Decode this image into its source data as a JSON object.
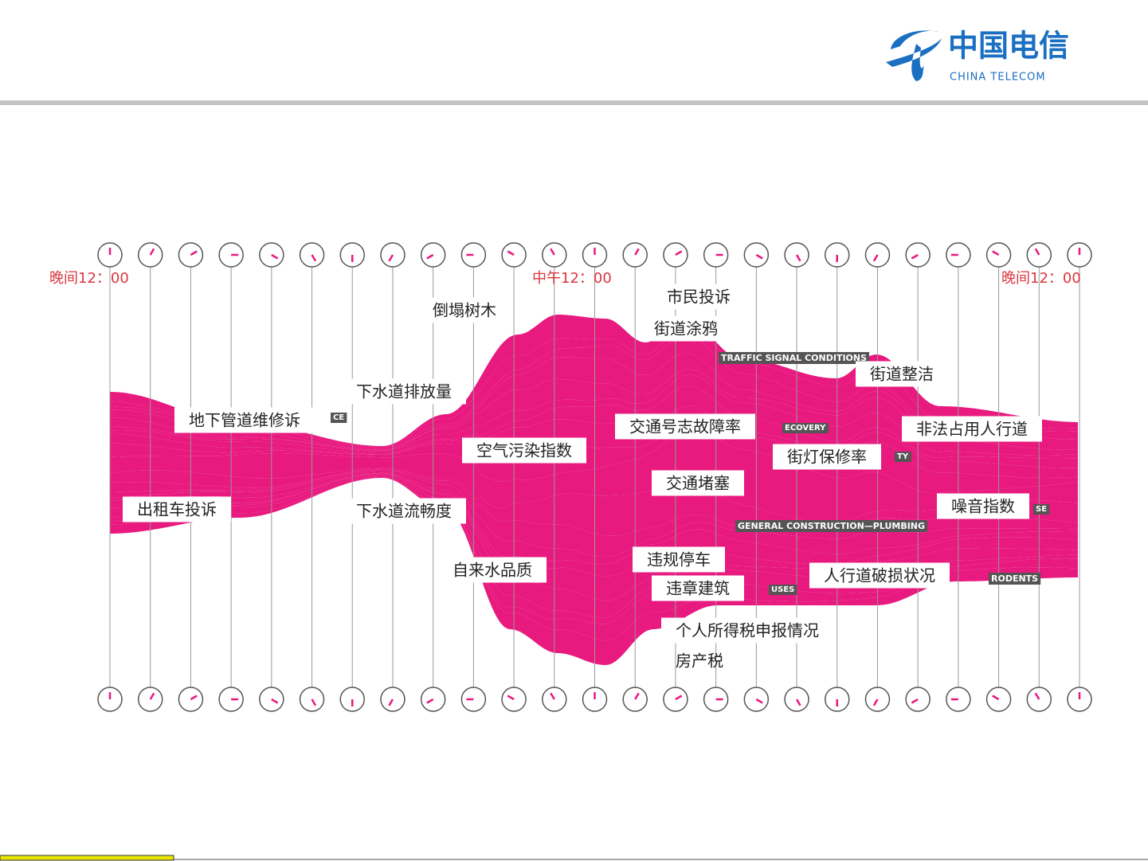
{
  "header": {
    "logo_cn": "中国电信",
    "logo_en": "CHINA TELECOM"
  },
  "time_labels": [
    "晚间12：00",
    "中午12：00",
    "晚间12：00"
  ],
  "labels": [
    "倒塌树木",
    "市民投诉",
    "街道涂鸦",
    "TRAFFIC SIGNAL CONDITIONS",
    "街道整洁",
    "下水道排放量",
    "地下管道维修诉",
    "交通号志故障率",
    "ECOVERY",
    "非法占用人行道",
    "空气污染指数",
    "街灯保修率",
    "TY",
    "交通堵塞",
    "出租车投诉",
    "下水道流畅度",
    "噪音指数",
    "SE",
    "GENERAL CONSTRUCTION—PLUMBING",
    "自来水品质",
    "违规停车",
    "人行道破损状况",
    "RODENTS",
    "违章建筑",
    "USES",
    "个人所得税申报情况",
    "房产税",
    "CE"
  ]
}
